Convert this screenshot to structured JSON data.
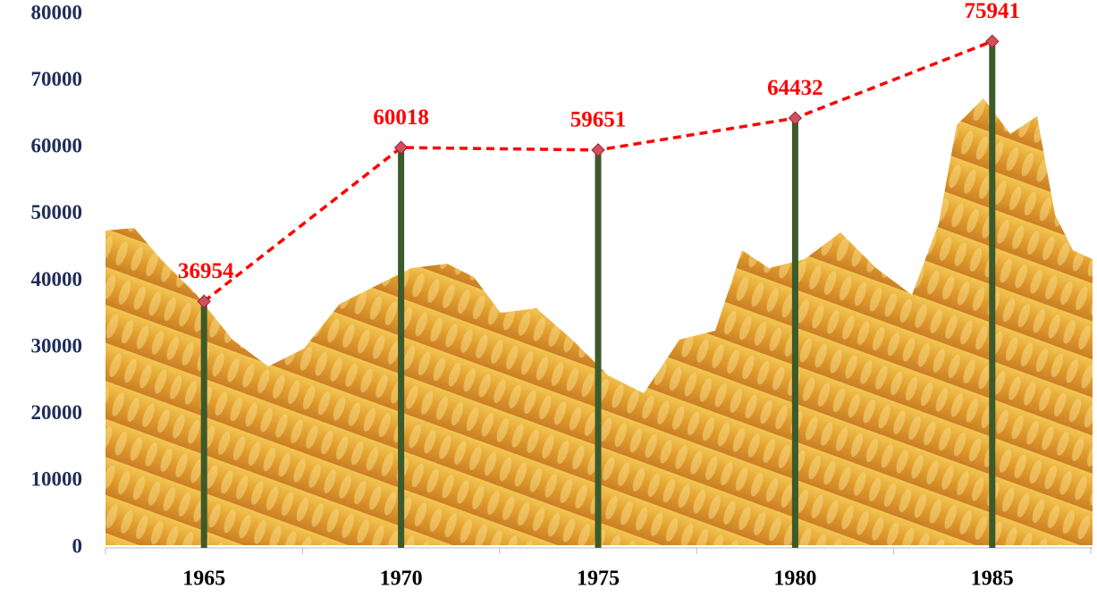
{
  "chart_data": {
    "type": "line",
    "categories": [
      "1965",
      "1970",
      "1975",
      "1980",
      "1985"
    ],
    "values": [
      36954,
      60018,
      59651,
      64432,
      75941
    ],
    "color": "#ff0000",
    "stem_color": "#3d5a2b",
    "marker_color": "#d05060",
    "tick_color": "#1f2d5a",
    "ylim": [
      0,
      80000
    ],
    "yticks": [
      0,
      10000,
      20000,
      30000,
      40000,
      50000,
      60000,
      70000,
      80000
    ],
    "grid": false
  }
}
